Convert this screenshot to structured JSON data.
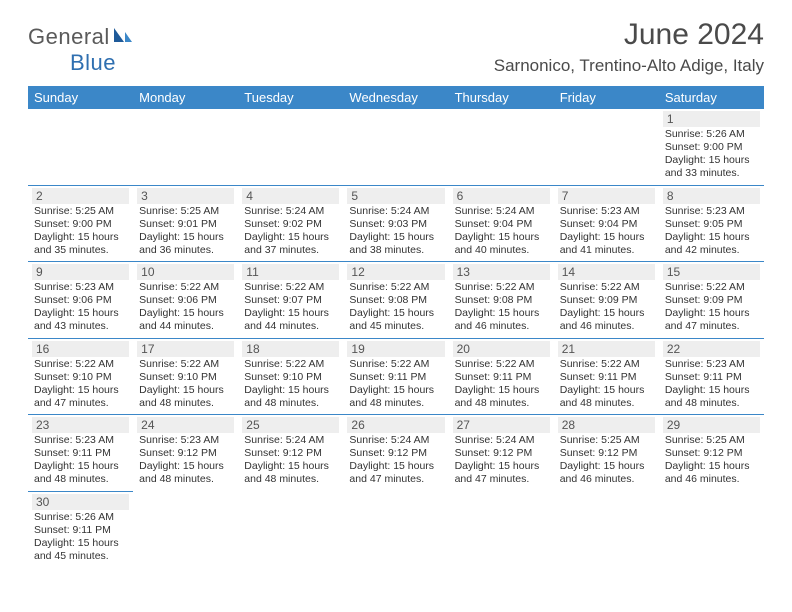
{
  "logo": {
    "text1": "General",
    "text2": "Blue"
  },
  "title": "June 2024",
  "location": "Sarnonico, Trentino-Alto Adige, Italy",
  "colors": {
    "header_bg": "#3b87c8",
    "header_fg": "#ffffff",
    "daynum_bg": "#eeeeee",
    "border": "#3b87c8",
    "logo_gray": "#5a5a5a",
    "logo_blue": "#2f6fb0"
  },
  "weekdays": [
    "Sunday",
    "Monday",
    "Tuesday",
    "Wednesday",
    "Thursday",
    "Friday",
    "Saturday"
  ],
  "weeks": [
    [
      null,
      null,
      null,
      null,
      null,
      null,
      {
        "n": "1",
        "sr": "Sunrise: 5:26 AM",
        "ss": "Sunset: 9:00 PM",
        "dl": "Daylight: 15 hours and 33 minutes."
      }
    ],
    [
      {
        "n": "2",
        "sr": "Sunrise: 5:25 AM",
        "ss": "Sunset: 9:00 PM",
        "dl": "Daylight: 15 hours and 35 minutes."
      },
      {
        "n": "3",
        "sr": "Sunrise: 5:25 AM",
        "ss": "Sunset: 9:01 PM",
        "dl": "Daylight: 15 hours and 36 minutes."
      },
      {
        "n": "4",
        "sr": "Sunrise: 5:24 AM",
        "ss": "Sunset: 9:02 PM",
        "dl": "Daylight: 15 hours and 37 minutes."
      },
      {
        "n": "5",
        "sr": "Sunrise: 5:24 AM",
        "ss": "Sunset: 9:03 PM",
        "dl": "Daylight: 15 hours and 38 minutes."
      },
      {
        "n": "6",
        "sr": "Sunrise: 5:24 AM",
        "ss": "Sunset: 9:04 PM",
        "dl": "Daylight: 15 hours and 40 minutes."
      },
      {
        "n": "7",
        "sr": "Sunrise: 5:23 AM",
        "ss": "Sunset: 9:04 PM",
        "dl": "Daylight: 15 hours and 41 minutes."
      },
      {
        "n": "8",
        "sr": "Sunrise: 5:23 AM",
        "ss": "Sunset: 9:05 PM",
        "dl": "Daylight: 15 hours and 42 minutes."
      }
    ],
    [
      {
        "n": "9",
        "sr": "Sunrise: 5:23 AM",
        "ss": "Sunset: 9:06 PM",
        "dl": "Daylight: 15 hours and 43 minutes."
      },
      {
        "n": "10",
        "sr": "Sunrise: 5:22 AM",
        "ss": "Sunset: 9:06 PM",
        "dl": "Daylight: 15 hours and 44 minutes."
      },
      {
        "n": "11",
        "sr": "Sunrise: 5:22 AM",
        "ss": "Sunset: 9:07 PM",
        "dl": "Daylight: 15 hours and 44 minutes."
      },
      {
        "n": "12",
        "sr": "Sunrise: 5:22 AM",
        "ss": "Sunset: 9:08 PM",
        "dl": "Daylight: 15 hours and 45 minutes."
      },
      {
        "n": "13",
        "sr": "Sunrise: 5:22 AM",
        "ss": "Sunset: 9:08 PM",
        "dl": "Daylight: 15 hours and 46 minutes."
      },
      {
        "n": "14",
        "sr": "Sunrise: 5:22 AM",
        "ss": "Sunset: 9:09 PM",
        "dl": "Daylight: 15 hours and 46 minutes."
      },
      {
        "n": "15",
        "sr": "Sunrise: 5:22 AM",
        "ss": "Sunset: 9:09 PM",
        "dl": "Daylight: 15 hours and 47 minutes."
      }
    ],
    [
      {
        "n": "16",
        "sr": "Sunrise: 5:22 AM",
        "ss": "Sunset: 9:10 PM",
        "dl": "Daylight: 15 hours and 47 minutes."
      },
      {
        "n": "17",
        "sr": "Sunrise: 5:22 AM",
        "ss": "Sunset: 9:10 PM",
        "dl": "Daylight: 15 hours and 48 minutes."
      },
      {
        "n": "18",
        "sr": "Sunrise: 5:22 AM",
        "ss": "Sunset: 9:10 PM",
        "dl": "Daylight: 15 hours and 48 minutes."
      },
      {
        "n": "19",
        "sr": "Sunrise: 5:22 AM",
        "ss": "Sunset: 9:11 PM",
        "dl": "Daylight: 15 hours and 48 minutes."
      },
      {
        "n": "20",
        "sr": "Sunrise: 5:22 AM",
        "ss": "Sunset: 9:11 PM",
        "dl": "Daylight: 15 hours and 48 minutes."
      },
      {
        "n": "21",
        "sr": "Sunrise: 5:22 AM",
        "ss": "Sunset: 9:11 PM",
        "dl": "Daylight: 15 hours and 48 minutes."
      },
      {
        "n": "22",
        "sr": "Sunrise: 5:23 AM",
        "ss": "Sunset: 9:11 PM",
        "dl": "Daylight: 15 hours and 48 minutes."
      }
    ],
    [
      {
        "n": "23",
        "sr": "Sunrise: 5:23 AM",
        "ss": "Sunset: 9:11 PM",
        "dl": "Daylight: 15 hours and 48 minutes."
      },
      {
        "n": "24",
        "sr": "Sunrise: 5:23 AM",
        "ss": "Sunset: 9:12 PM",
        "dl": "Daylight: 15 hours and 48 minutes."
      },
      {
        "n": "25",
        "sr": "Sunrise: 5:24 AM",
        "ss": "Sunset: 9:12 PM",
        "dl": "Daylight: 15 hours and 48 minutes."
      },
      {
        "n": "26",
        "sr": "Sunrise: 5:24 AM",
        "ss": "Sunset: 9:12 PM",
        "dl": "Daylight: 15 hours and 47 minutes."
      },
      {
        "n": "27",
        "sr": "Sunrise: 5:24 AM",
        "ss": "Sunset: 9:12 PM",
        "dl": "Daylight: 15 hours and 47 minutes."
      },
      {
        "n": "28",
        "sr": "Sunrise: 5:25 AM",
        "ss": "Sunset: 9:12 PM",
        "dl": "Daylight: 15 hours and 46 minutes."
      },
      {
        "n": "29",
        "sr": "Sunrise: 5:25 AM",
        "ss": "Sunset: 9:12 PM",
        "dl": "Daylight: 15 hours and 46 minutes."
      }
    ],
    [
      {
        "n": "30",
        "sr": "Sunrise: 5:26 AM",
        "ss": "Sunset: 9:11 PM",
        "dl": "Daylight: 15 hours and 45 minutes."
      },
      null,
      null,
      null,
      null,
      null,
      null
    ]
  ]
}
